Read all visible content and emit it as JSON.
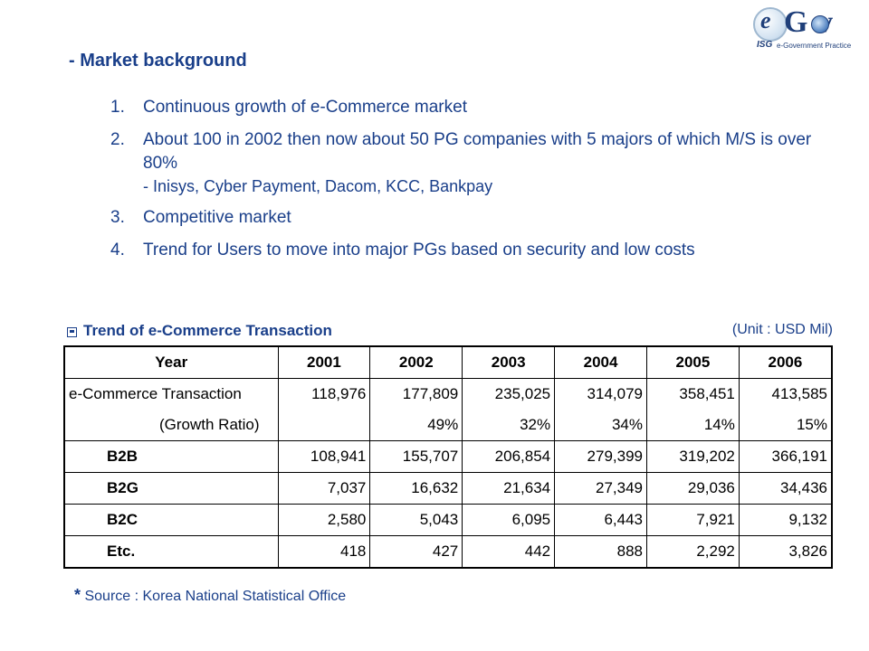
{
  "logo": {
    "e_letter": "e",
    "gov_text": "G  v",
    "isg": "ISG",
    "practice": "e-Government Practice"
  },
  "section_title": "- Market background",
  "bullets": [
    {
      "num": "1.",
      "text": "Continuous growth of e-Commerce market",
      "sub": ""
    },
    {
      "num": "2.",
      "text": "About 100 in 2002 then now about 50 PG companies with 5 majors of which M/S is over 80%",
      "sub": "- Inisys, Cyber Payment, Dacom, KCC, Bankpay"
    },
    {
      "num": "3.",
      "text": "Competitive market",
      "sub": ""
    },
    {
      "num": "4.",
      "text": "Trend for Users to move into major PGs based on security and low costs",
      "sub": ""
    }
  ],
  "table": {
    "title": "Trend of e-Commerce Transaction",
    "unit": "(Unit : USD Mil)",
    "headers": [
      "Year",
      "2001",
      "2002",
      "2003",
      "2004",
      "2005",
      "2006"
    ],
    "rows": {
      "ecommerce": {
        "label": "e-Commerce Transaction",
        "values": [
          "118,976",
          "177,809",
          "235,025",
          "314,079",
          "358,451",
          "413,585"
        ]
      },
      "growth": {
        "label": "(Growth Ratio)",
        "values": [
          "",
          "49%",
          "32%",
          "34%",
          "14%",
          "15%"
        ]
      },
      "b2b": {
        "label": "B2B",
        "values": [
          "108,941",
          "155,707",
          "206,854",
          "279,399",
          "319,202",
          "366,191"
        ]
      },
      "b2g": {
        "label": "B2G",
        "values": [
          "7,037",
          "16,632",
          "21,634",
          "27,349",
          "29,036",
          "34,436"
        ]
      },
      "b2c": {
        "label": "B2C",
        "values": [
          "2,580",
          "5,043",
          "6,095",
          "6,443",
          "7,921",
          "9,132"
        ]
      },
      "etc": {
        "label": "Etc.",
        "values": [
          "418",
          "427",
          "442",
          "888",
          "2,292",
          "3,826"
        ]
      }
    }
  },
  "source": {
    "star": "*",
    "text": "Source : Korea National Statistical Office"
  }
}
